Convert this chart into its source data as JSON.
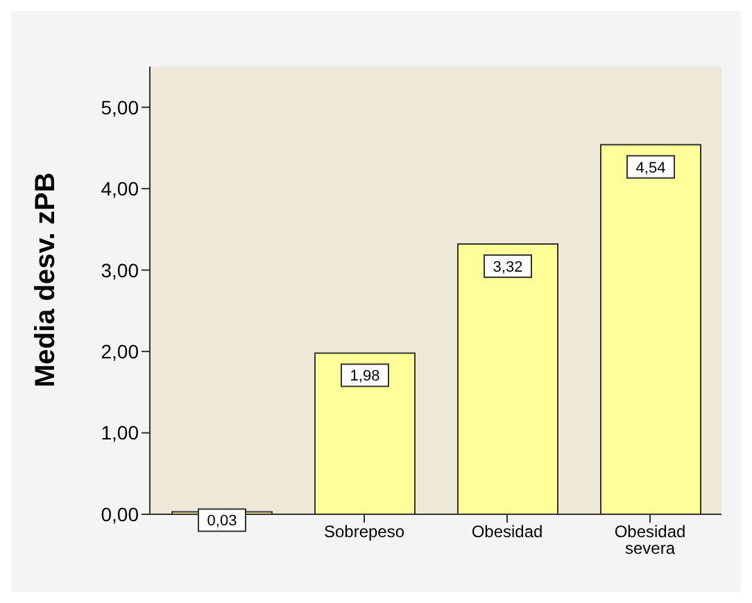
{
  "chart_data": {
    "type": "bar",
    "ylabel": "Media desv. zPB",
    "categories": [
      null,
      "Sobrepeso",
      "Obesidad",
      "Obesidad severa"
    ],
    "values": [
      0.03,
      1.98,
      3.32,
      4.54
    ],
    "value_labels": [
      "0,03",
      "1,98",
      "3,32",
      "4,54"
    ],
    "color": "#ffff99",
    "ylim": [
      0,
      5.5
    ],
    "yticks": [
      {
        "value": 0,
        "label": "0,00"
      },
      {
        "value": 1,
        "label": "1,00"
      },
      {
        "value": 2,
        "label": "2,00"
      },
      {
        "value": 3,
        "label": "3,00"
      },
      {
        "value": 4,
        "label": "4,00"
      },
      {
        "value": 5,
        "label": "5,00"
      }
    ],
    "grid": false,
    "legend": false
  }
}
